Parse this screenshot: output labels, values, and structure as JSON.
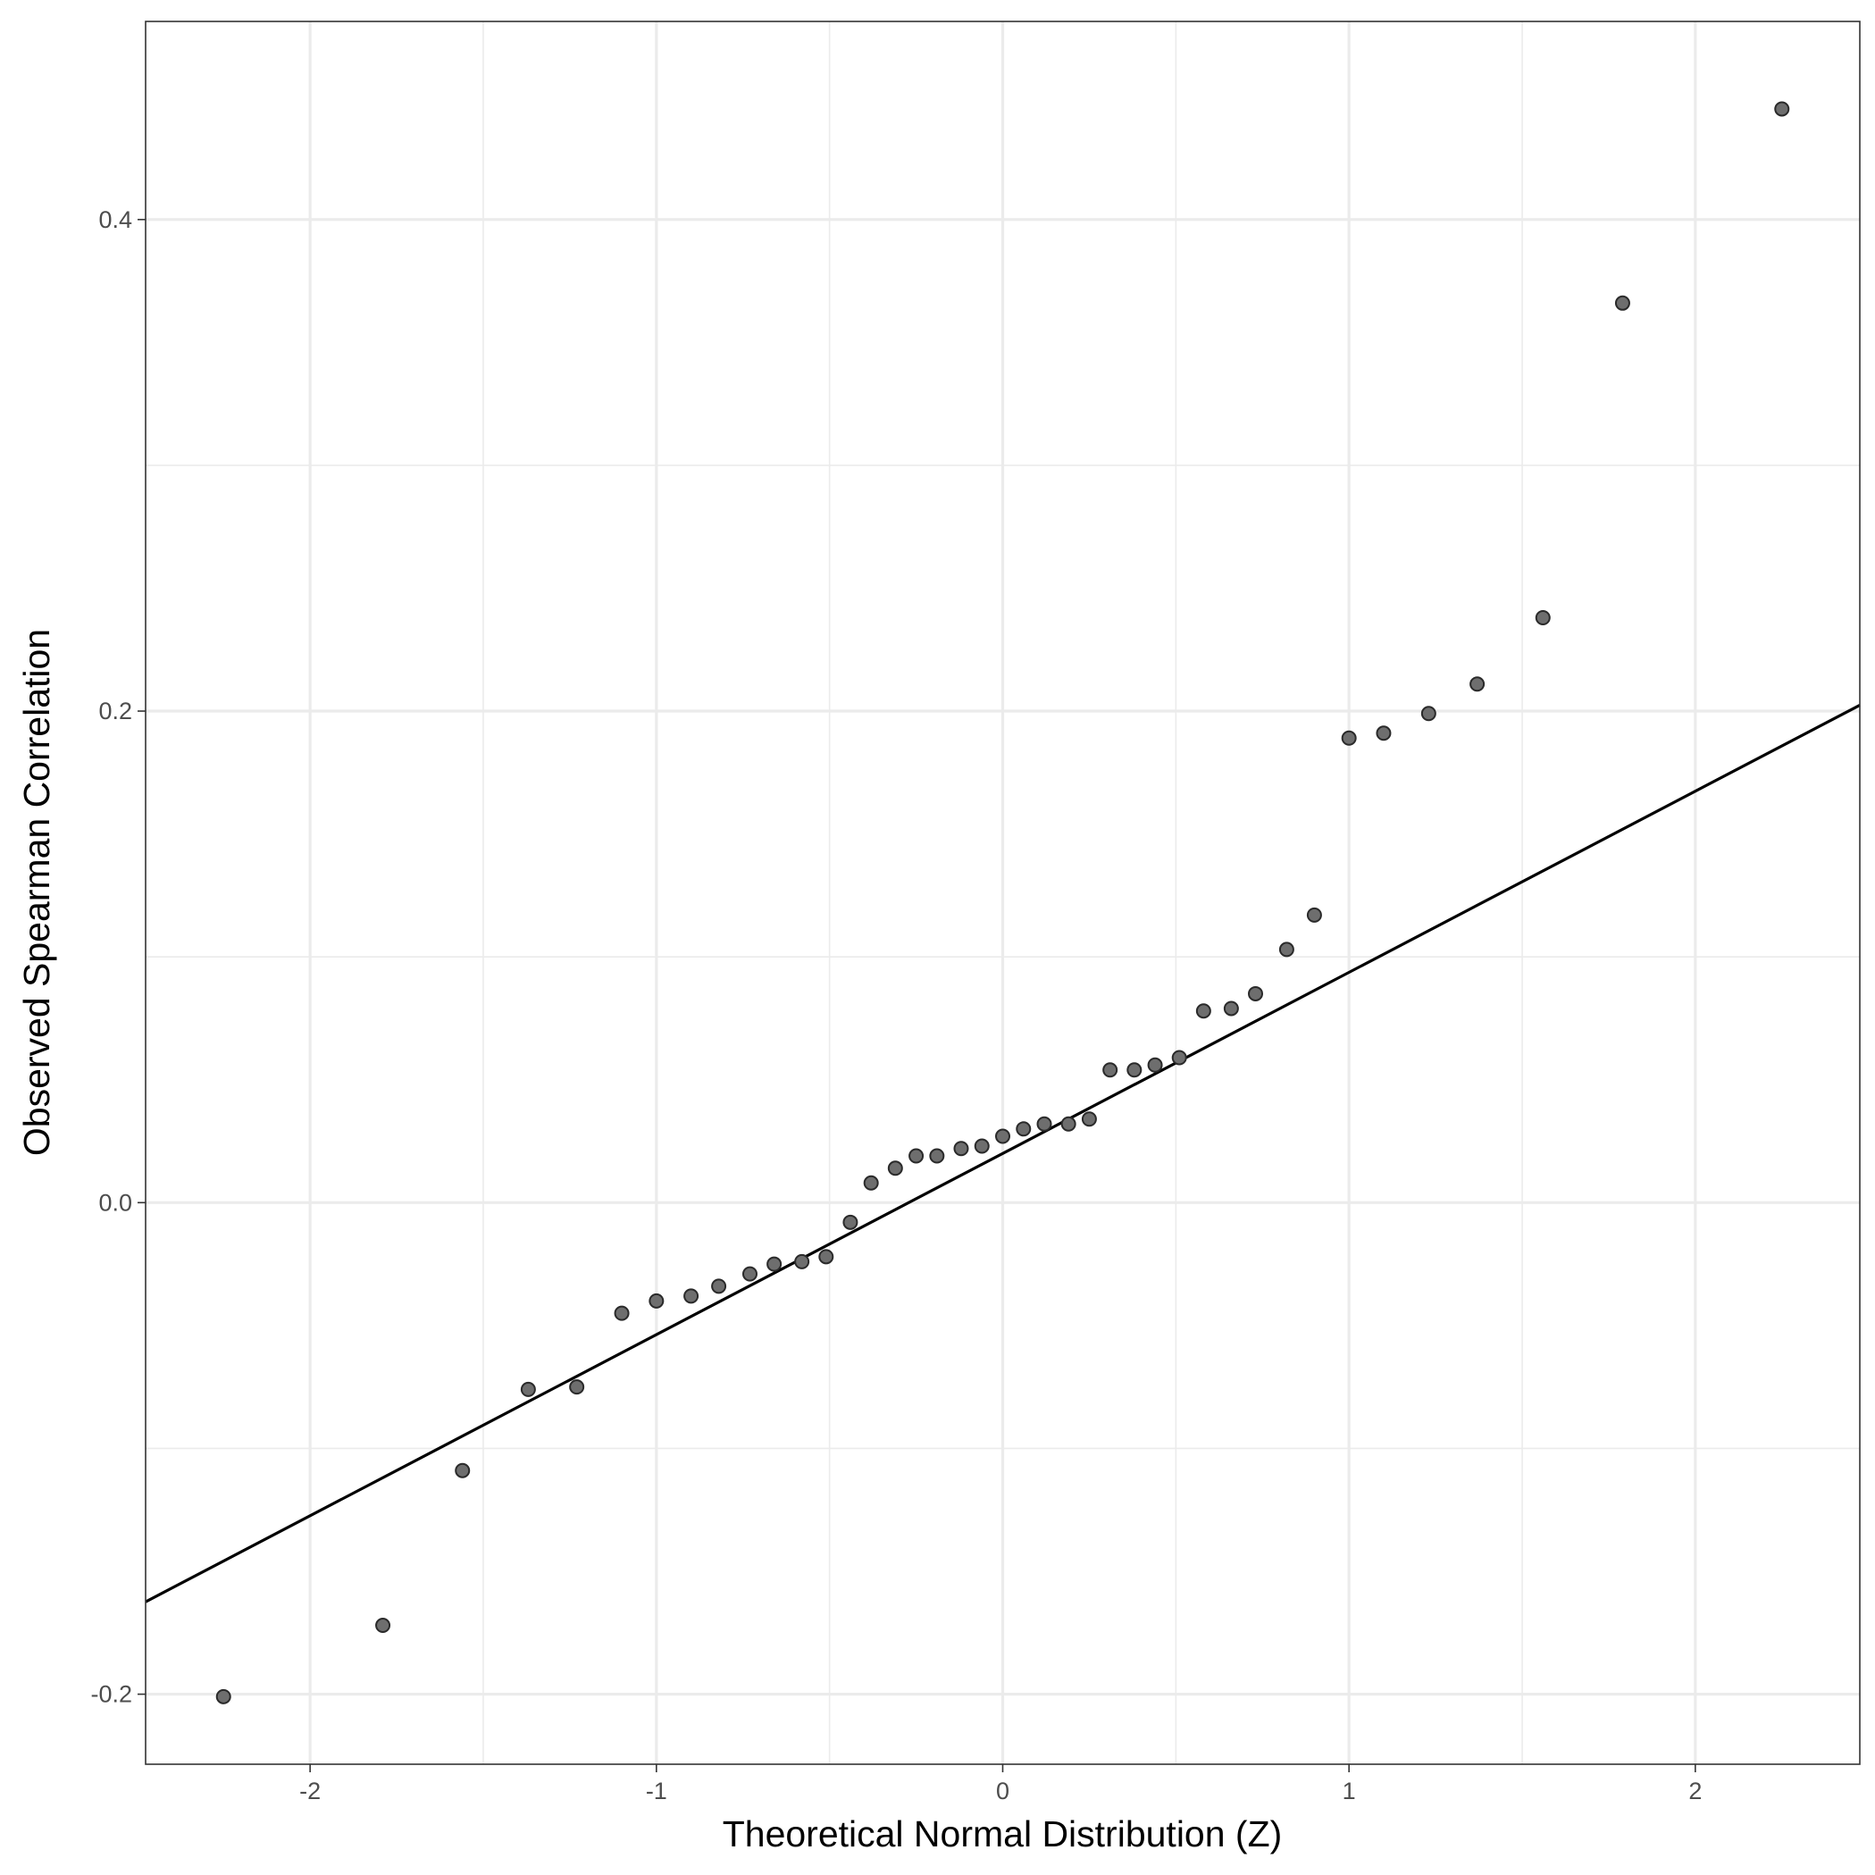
{
  "chart_data": {
    "type": "scatter",
    "title": "",
    "xlabel": "Theoretical Normal Distribution (Z)",
    "ylabel": "Observed Spearman Correlation",
    "xlim": [
      -2.475,
      2.475
    ],
    "ylim": [
      -0.2285,
      0.4806
    ],
    "x_ticks": [
      -2,
      -1,
      0,
      1,
      2
    ],
    "x_tick_labels": [
      "-2",
      "-1",
      "0",
      "1",
      "2"
    ],
    "y_ticks": [
      -0.2,
      0.0,
      0.2,
      0.4
    ],
    "y_tick_labels": [
      "-0.2",
      "0.0",
      "0.2",
      "0.4"
    ],
    "x_minor_ticks": [
      -1.5,
      -0.5,
      0.5,
      1.5
    ],
    "y_minor_ticks": [
      -0.1,
      0.1,
      0.3
    ],
    "grid": true,
    "legend": "none",
    "colors": {
      "point_fill": "#6e6e6e",
      "point_stroke": "#2a2a2a",
      "line": "#000000",
      "grid": "#ebebeb"
    },
    "reference_line": {
      "intercept": 0.02,
      "slope": 0.0737
    },
    "points": {
      "x": [
        -2.25,
        -1.79,
        -1.56,
        -1.37,
        -1.23,
        -1.1,
        -1.0,
        -0.9,
        -0.82,
        -0.73,
        -0.66,
        -0.58,
        -0.51,
        -0.44,
        -0.38,
        -0.31,
        -0.25,
        -0.19,
        -0.12,
        -0.06,
        0.0,
        0.06,
        0.12,
        0.19,
        0.25,
        0.31,
        0.38,
        0.44,
        0.51,
        0.58,
        0.66,
        0.73,
        0.82,
        0.9,
        1.0,
        1.1,
        1.23,
        1.37,
        1.56,
        1.79,
        2.25
      ],
      "y": [
        -0.201,
        -0.172,
        -0.109,
        -0.076,
        -0.075,
        -0.045,
        -0.04,
        -0.038,
        -0.034,
        -0.029,
        -0.025,
        -0.024,
        -0.022,
        -0.008,
        0.008,
        0.014,
        0.019,
        0.019,
        0.022,
        0.023,
        0.027,
        0.03,
        0.032,
        0.032,
        0.034,
        0.054,
        0.054,
        0.056,
        0.059,
        0.078,
        0.079,
        0.085,
        0.103,
        0.117,
        0.189,
        0.191,
        0.199,
        0.211,
        0.238,
        0.366,
        0.445
      ]
    }
  }
}
